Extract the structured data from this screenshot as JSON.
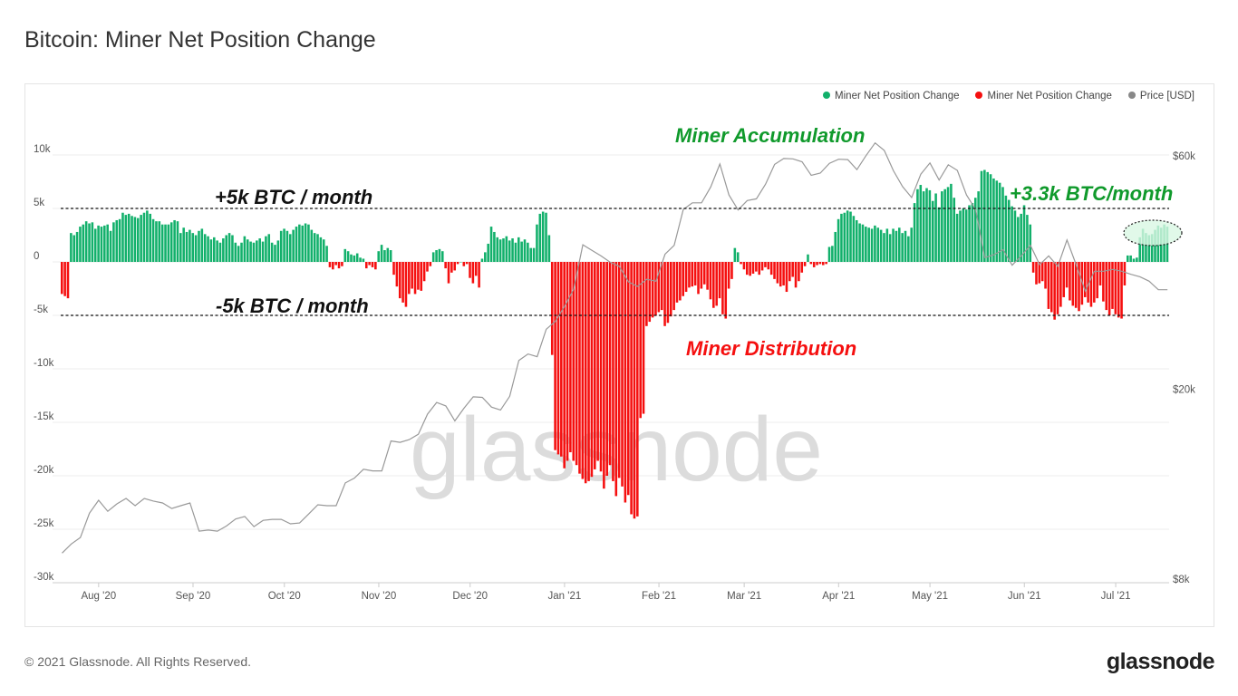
{
  "title": "Bitcoin: Miner Net Position Change",
  "footer": "© 2021 Glassnode. All Rights Reserved.",
  "logo": "glassnode",
  "watermark": "glassnode",
  "legend": [
    {
      "label": "Miner Net Position Change",
      "color": "#12b06b"
    },
    {
      "label": "Miner Net Position Change",
      "color": "#f50f0f"
    },
    {
      "label": "Price [USD]",
      "color": "#888888"
    }
  ],
  "colors": {
    "positive": "#12b06b",
    "negative": "#f50f0f",
    "price": "#999999",
    "grid": "#eeeeee",
    "highlight_fill": "#d9f8e4"
  },
  "annotations": {
    "accumulation": "Miner Accumulation",
    "distribution": "Miner Distribution",
    "plus5k": "+5k BTC / month",
    "minus5k": "-5k BTC / month",
    "current": "+3.3k BTC/month"
  },
  "chart_data": {
    "type": "bar",
    "title": "Bitcoin: Miner Net Position Change",
    "x_start": "2020-07-20",
    "x_step_days": 1,
    "x_ticks": [
      {
        "date": "2020-08-01",
        "label": "Aug '20"
      },
      {
        "date": "2020-09-01",
        "label": "Sep '20"
      },
      {
        "date": "2020-10-01",
        "label": "Oct '20"
      },
      {
        "date": "2020-11-01",
        "label": "Nov '20"
      },
      {
        "date": "2020-12-01",
        "label": "Dec '20"
      },
      {
        "date": "2021-01-01",
        "label": "Jan '21"
      },
      {
        "date": "2021-02-01",
        "label": "Feb '21"
      },
      {
        "date": "2021-03-01",
        "label": "Mar '21"
      },
      {
        "date": "2021-04-01",
        "label": "Apr '21"
      },
      {
        "date": "2021-05-01",
        "label": "May '21"
      },
      {
        "date": "2021-06-01",
        "label": "Jun '21"
      },
      {
        "date": "2021-07-01",
        "label": "Jul '21"
      }
    ],
    "y_left": {
      "ylim": [
        -30000,
        10000
      ],
      "ticks": [
        10000,
        5000,
        0,
        -5000,
        -10000,
        -15000,
        -20000,
        -25000,
        -30000
      ],
      "tick_labels": [
        "10k",
        "5k",
        "0",
        "-5k",
        "-10k",
        "-15k",
        "-20k",
        "-25k",
        "-30k"
      ],
      "unit": "BTC"
    },
    "y_right": {
      "scale": "log",
      "ylim": [
        8000,
        60000
      ],
      "ticks": [
        60000,
        20000,
        8000
      ],
      "tick_labels": [
        "$60k",
        "$20k",
        "$8k"
      ]
    },
    "grid": true,
    "legend_position": "top-right",
    "reference_lines": [
      5000,
      -5000
    ],
    "series": [
      {
        "name": "Miner Net Position Change",
        "type": "bar",
        "values": [
          -3000,
          -3200,
          -3400,
          2700,
          2500,
          2800,
          3300,
          3500,
          3800,
          3600,
          3700,
          3100,
          3400,
          3300,
          3400,
          3500,
          2900,
          3700,
          3900,
          4000,
          4600,
          4400,
          4500,
          4300,
          4200,
          4100,
          4400,
          4600,
          4800,
          4500,
          4000,
          3800,
          3800,
          3500,
          3500,
          3500,
          3700,
          3900,
          3800,
          2700,
          3200,
          2800,
          3000,
          2700,
          2500,
          2900,
          3100,
          2600,
          2400,
          2100,
          2300,
          2000,
          1800,
          2200,
          2500,
          2700,
          2500,
          1800,
          1500,
          1800,
          2400,
          2100,
          1900,
          1800,
          2000,
          2200,
          1900,
          2400,
          2600,
          1800,
          1600,
          2000,
          2900,
          3100,
          2900,
          2600,
          3000,
          3300,
          3500,
          3400,
          3600,
          3500,
          3000,
          2700,
          2600,
          2300,
          2100,
          1500,
          -500,
          -700,
          -300,
          -600,
          -400,
          1200,
          1000,
          700,
          600,
          800,
          400,
          300,
          -600,
          -300,
          -500,
          -700,
          1000,
          1600,
          1100,
          1300,
          1100,
          -1200,
          -2300,
          -3400,
          -3800,
          -4200,
          -3000,
          -2500,
          -3000,
          -2600,
          -2700,
          -1800,
          -900,
          -400,
          900,
          1100,
          1200,
          1000,
          -600,
          -2000,
          -1000,
          -800,
          -200,
          0,
          -400,
          -200,
          -1500,
          -2000,
          -1300,
          -2400,
          300,
          900,
          1700,
          3300,
          2800,
          2300,
          2100,
          2200,
          2400,
          2000,
          2200,
          1800,
          2300,
          1900,
          2100,
          1800,
          1300,
          1300,
          3500,
          4500,
          4700,
          4600,
          2500,
          -8700,
          -17600,
          -18000,
          -18200,
          -19300,
          -18600,
          -17800,
          -18600,
          -19000,
          -19800,
          -20300,
          -20700,
          -20500,
          -20100,
          -19400,
          -18600,
          -19600,
          -21200,
          -20000,
          -19000,
          -20500,
          -21900,
          -20200,
          -21000,
          -22500,
          -21800,
          -23600,
          -24000,
          -23800,
          -14600,
          -14200,
          -6000,
          -5600,
          -5200,
          -5000,
          -4700,
          -4500,
          -6000,
          -5700,
          -5100,
          -4500,
          -3800,
          -3600,
          -3200,
          -2800,
          -2400,
          -2300,
          -2200,
          -3000,
          -2500,
          -2100,
          -2600,
          -3500,
          -4300,
          -4100,
          -3400,
          -4900,
          -5300,
          -2500,
          -1600,
          1300,
          900,
          -200,
          -700,
          -1200,
          -1300,
          -1100,
          -900,
          -1200,
          -800,
          -500,
          -700,
          -1200,
          -1600,
          -2000,
          -2300,
          -2200,
          -2800,
          -1800,
          -1400,
          -2400,
          -1800,
          -1000,
          -400,
          700,
          -200,
          -500,
          -300,
          -200,
          -300,
          -200,
          1400,
          1500,
          2800,
          4000,
          4500,
          4600,
          4800,
          4700,
          4300,
          3900,
          3600,
          3500,
          3300,
          3200,
          3100,
          3400,
          3200,
          3000,
          2700,
          3100,
          2600,
          3100,
          2900,
          3200,
          2700,
          2900,
          2400,
          3200,
          5500,
          6800,
          7200,
          6600,
          6900,
          6700,
          5700,
          6400,
          5100,
          6600,
          6800,
          7000,
          7300,
          6000,
          4500,
          4800,
          5000,
          4900,
          5300,
          5500,
          6000,
          6600,
          8500,
          8600,
          8400,
          8200,
          7800,
          7600,
          7400,
          7000,
          6200,
          5800,
          5200,
          4800,
          4200,
          4500,
          5300,
          4400,
          3500,
          -1000,
          -2100,
          -2000,
          -1800,
          -2500,
          -4400,
          -4700,
          -5400,
          -4900,
          -4200,
          -3300,
          -2400,
          -3600,
          -4100,
          -4300,
          -4600,
          -4000,
          -3300,
          -3800,
          -4200,
          -3800,
          -3400,
          -2200,
          -3700,
          -4500,
          -5000,
          -4400,
          -4900,
          -5200,
          -5300,
          -2200,
          600,
          600,
          300,
          400,
          2300,
          3100,
          2700,
          2500,
          2600,
          3000,
          3400,
          3200,
          3500,
          3300
        ]
      },
      {
        "name": "Price [USD]",
        "type": "line",
        "axis": "right",
        "x_step_days": 3,
        "values": [
          9200,
          9600,
          9900,
          11100,
          11800,
          11200,
          11600,
          11900,
          11500,
          11900,
          11750,
          11650,
          11350,
          11500,
          11650,
          10200,
          10250,
          10200,
          10450,
          10800,
          10930,
          10420,
          10730,
          10780,
          10780,
          10560,
          10600,
          11060,
          11550,
          11500,
          11500,
          12800,
          13100,
          13650,
          13550,
          13550,
          15600,
          15500,
          15700,
          16100,
          17700,
          18700,
          18400,
          17150,
          18200,
          19200,
          19150,
          18300,
          18050,
          19250,
          22800,
          23500,
          23200,
          26400,
          27400,
          29400,
          31900,
          39300,
          38300,
          37300,
          36200,
          35500,
          33000,
          32300,
          33400,
          33100,
          37600,
          39200,
          46400,
          47900,
          47900,
          51600,
          57500,
          49700,
          46300,
          48400,
          48800,
          52300,
          57400,
          59000,
          58900,
          58100,
          54500,
          55100,
          57700,
          58800,
          58700,
          56000,
          59800,
          63500,
          61300,
          55700,
          51700,
          49100,
          54800,
          57800,
          53300,
          57300,
          55800,
          49700,
          46400,
          37000,
          37500,
          38400,
          35700,
          37300,
          39200,
          35800,
          37300,
          35500,
          40200,
          35800,
          31600,
          34700,
          34700,
          35000,
          34700,
          34200,
          33800,
          33100,
          31800,
          31800
        ]
      }
    ]
  }
}
